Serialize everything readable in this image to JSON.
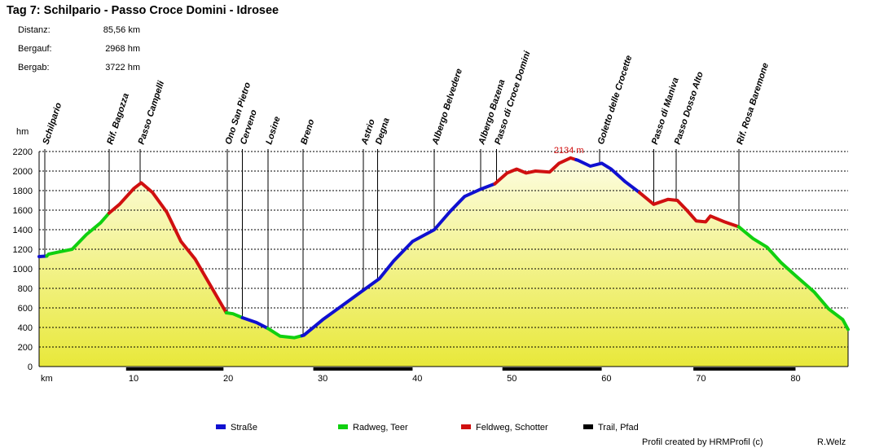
{
  "header": {
    "title": "Tag 7: Schilpario - Passo Croce Domini - Idrosee",
    "stats": [
      {
        "label": "Distanz:",
        "value": "85,56 km"
      },
      {
        "label": "Bergauf:",
        "value": "2968 hm"
      },
      {
        "label": "Bergab:",
        "value": "3722 hm"
      }
    ]
  },
  "chart_data": {
    "type": "area",
    "title": "Tag 7: Schilpario - Passo Croce Domini - Idrosee",
    "xlabel": "km",
    "ylabel": "hm",
    "xlim": [
      0,
      85.56
    ],
    "ylim": [
      0,
      2200
    ],
    "x_ticks": [
      10,
      20,
      30,
      40,
      50,
      60,
      70,
      80
    ],
    "y_ticks": [
      0,
      200,
      400,
      600,
      800,
      1000,
      1200,
      1400,
      1600,
      1800,
      2000,
      2200
    ],
    "grid": true,
    "fill": "yellow gradient",
    "max_label": "2134 m",
    "max_point": {
      "km": 56.2,
      "elev": 2134
    },
    "profile": [
      {
        "km": 0,
        "elev": 1125
      },
      {
        "km": 0.8,
        "elev": 1130
      },
      {
        "km": 1.0,
        "elev": 1150
      },
      {
        "km": 2.0,
        "elev": 1170
      },
      {
        "km": 3.5,
        "elev": 1200
      },
      {
        "km": 5.0,
        "elev": 1350
      },
      {
        "km": 6.5,
        "elev": 1470
      },
      {
        "km": 7.4,
        "elev": 1570
      },
      {
        "km": 8.5,
        "elev": 1660
      },
      {
        "km": 10.0,
        "elev": 1820
      },
      {
        "km": 10.8,
        "elev": 1880
      },
      {
        "km": 12.0,
        "elev": 1780
      },
      {
        "km": 13.5,
        "elev": 1580
      },
      {
        "km": 15.0,
        "elev": 1280
      },
      {
        "km": 16.5,
        "elev": 1100
      },
      {
        "km": 18.0,
        "elev": 850
      },
      {
        "km": 19.8,
        "elev": 550
      },
      {
        "km": 20.5,
        "elev": 540
      },
      {
        "km": 21.5,
        "elev": 500
      },
      {
        "km": 23.0,
        "elev": 450
      },
      {
        "km": 24.2,
        "elev": 390
      },
      {
        "km": 25.5,
        "elev": 310
      },
      {
        "km": 27.0,
        "elev": 295
      },
      {
        "km": 28.0,
        "elev": 320
      },
      {
        "km": 30.0,
        "elev": 480
      },
      {
        "km": 32.0,
        "elev": 620
      },
      {
        "km": 34.0,
        "elev": 760
      },
      {
        "km": 36.0,
        "elev": 900
      },
      {
        "km": 37.5,
        "elev": 1080
      },
      {
        "km": 39.5,
        "elev": 1280
      },
      {
        "km": 41.8,
        "elev": 1400
      },
      {
        "km": 43.5,
        "elev": 1590
      },
      {
        "km": 45.0,
        "elev": 1740
      },
      {
        "km": 46.6,
        "elev": 1810
      },
      {
        "km": 48.2,
        "elev": 1870
      },
      {
        "km": 49.5,
        "elev": 1980
      },
      {
        "km": 50.5,
        "elev": 2020
      },
      {
        "km": 51.5,
        "elev": 1980
      },
      {
        "km": 52.5,
        "elev": 2000
      },
      {
        "km": 54.0,
        "elev": 1990
      },
      {
        "km": 55.0,
        "elev": 2080
      },
      {
        "km": 56.2,
        "elev": 2134
      },
      {
        "km": 57.0,
        "elev": 2110
      },
      {
        "km": 58.3,
        "elev": 2050
      },
      {
        "km": 59.5,
        "elev": 2080
      },
      {
        "km": 60.5,
        "elev": 2020
      },
      {
        "km": 62.0,
        "elev": 1890
      },
      {
        "km": 63.5,
        "elev": 1780
      },
      {
        "km": 65.0,
        "elev": 1660
      },
      {
        "km": 66.5,
        "elev": 1710
      },
      {
        "km": 67.5,
        "elev": 1700
      },
      {
        "km": 68.5,
        "elev": 1600
      },
      {
        "km": 69.5,
        "elev": 1490
      },
      {
        "km": 70.5,
        "elev": 1480
      },
      {
        "km": 71.0,
        "elev": 1540
      },
      {
        "km": 72.5,
        "elev": 1480
      },
      {
        "km": 74.0,
        "elev": 1430
      },
      {
        "km": 75.5,
        "elev": 1310
      },
      {
        "km": 77.0,
        "elev": 1220
      },
      {
        "km": 78.5,
        "elev": 1060
      },
      {
        "km": 80.0,
        "elev": 930
      },
      {
        "km": 82.0,
        "elev": 760
      },
      {
        "km": 83.5,
        "elev": 590
      },
      {
        "km": 85.0,
        "elev": 480
      },
      {
        "km": 85.56,
        "elev": 380
      }
    ],
    "segments": [
      {
        "from": 0,
        "to": 0.8,
        "type": "Straße"
      },
      {
        "from": 0.8,
        "to": 7.4,
        "type": "Radweg, Teer"
      },
      {
        "from": 7.4,
        "to": 19.8,
        "type": "Feldweg, Schotter"
      },
      {
        "from": 19.8,
        "to": 21.5,
        "type": "Radweg, Teer"
      },
      {
        "from": 21.5,
        "to": 24.2,
        "type": "Straße"
      },
      {
        "from": 24.2,
        "to": 27.8,
        "type": "Radweg, Teer"
      },
      {
        "from": 27.8,
        "to": 48.2,
        "type": "Straße"
      },
      {
        "from": 48.2,
        "to": 56.8,
        "type": "Feldweg, Schotter"
      },
      {
        "from": 56.8,
        "to": 63.5,
        "type": "Straße"
      },
      {
        "from": 63.5,
        "to": 74.0,
        "type": "Feldweg, Schotter"
      },
      {
        "from": 74.0,
        "to": 85.56,
        "type": "Radweg, Teer"
      }
    ],
    "waypoints": [
      {
        "name": "Schilpario",
        "km": 0.6
      },
      {
        "name": "Rif. Bagozza",
        "km": 7.4
      },
      {
        "name": "Passo Campelli",
        "km": 10.7
      },
      {
        "name": "Ono San Pietro",
        "km": 19.9
      },
      {
        "name": "Cerveno",
        "km": 21.5
      },
      {
        "name": "Losine",
        "km": 24.2
      },
      {
        "name": "Breno",
        "km": 27.9
      },
      {
        "name": "Astrio",
        "km": 34.3
      },
      {
        "name": "Degna",
        "km": 35.8
      },
      {
        "name": "Albergo Belvedere",
        "km": 41.8
      },
      {
        "name": "Albergo Bazena",
        "km": 46.7
      },
      {
        "name": "Passo di Croce Domini",
        "km": 48.4
      },
      {
        "name": "Goletto delle Crocette",
        "km": 59.3
      },
      {
        "name": "Passo di Maniva",
        "km": 65.0
      },
      {
        "name": "Passo Dosso Alto",
        "km": 67.4
      },
      {
        "name": "Rif. Rosa Baremone",
        "km": 74.0
      }
    ],
    "trail_bars": [
      [
        9.2,
        19.5
      ],
      [
        29.0,
        39.5
      ],
      [
        49.0,
        59.5
      ],
      [
        69.2,
        80.0
      ]
    ]
  },
  "legend": {
    "items": [
      {
        "label": "Straße",
        "color": "#1010d0"
      },
      {
        "label": "Radweg, Teer",
        "color": "#10d010"
      },
      {
        "label": "Feldweg, Schotter",
        "color": "#d01010"
      },
      {
        "label": "Trail, Pfad",
        "color": "#000000"
      }
    ]
  },
  "footer": {
    "credit": "Profil created by HRMProfil (c)",
    "author": "R.Welz"
  }
}
